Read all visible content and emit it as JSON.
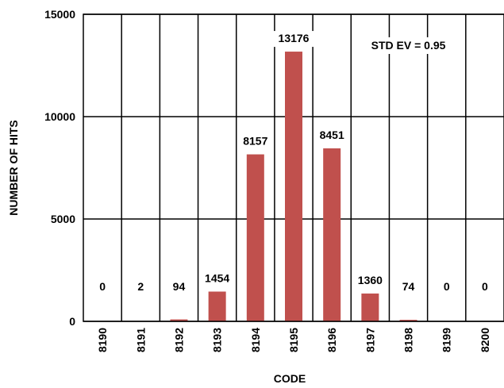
{
  "chart_data": {
    "type": "bar",
    "categories": [
      "8190",
      "8191",
      "8192",
      "8193",
      "8194",
      "8195",
      "8196",
      "8197",
      "8198",
      "8199",
      "8200"
    ],
    "values": [
      0,
      2,
      94,
      1454,
      8157,
      13176,
      8451,
      1360,
      74,
      0,
      0
    ],
    "data_labels": [
      "0",
      "2",
      "94",
      "1454",
      "8157",
      "13176",
      "8451",
      "1360",
      "74",
      "0",
      "0"
    ],
    "xlabel": "CODE",
    "ylabel": "NUMBER OF HITS",
    "ylim": [
      0,
      15000
    ],
    "yticks": [
      "0",
      "5000",
      "10000",
      "15000"
    ],
    "annotation": "STD EV = 0.95",
    "bar_color": "#c0504d",
    "grid": true
  }
}
